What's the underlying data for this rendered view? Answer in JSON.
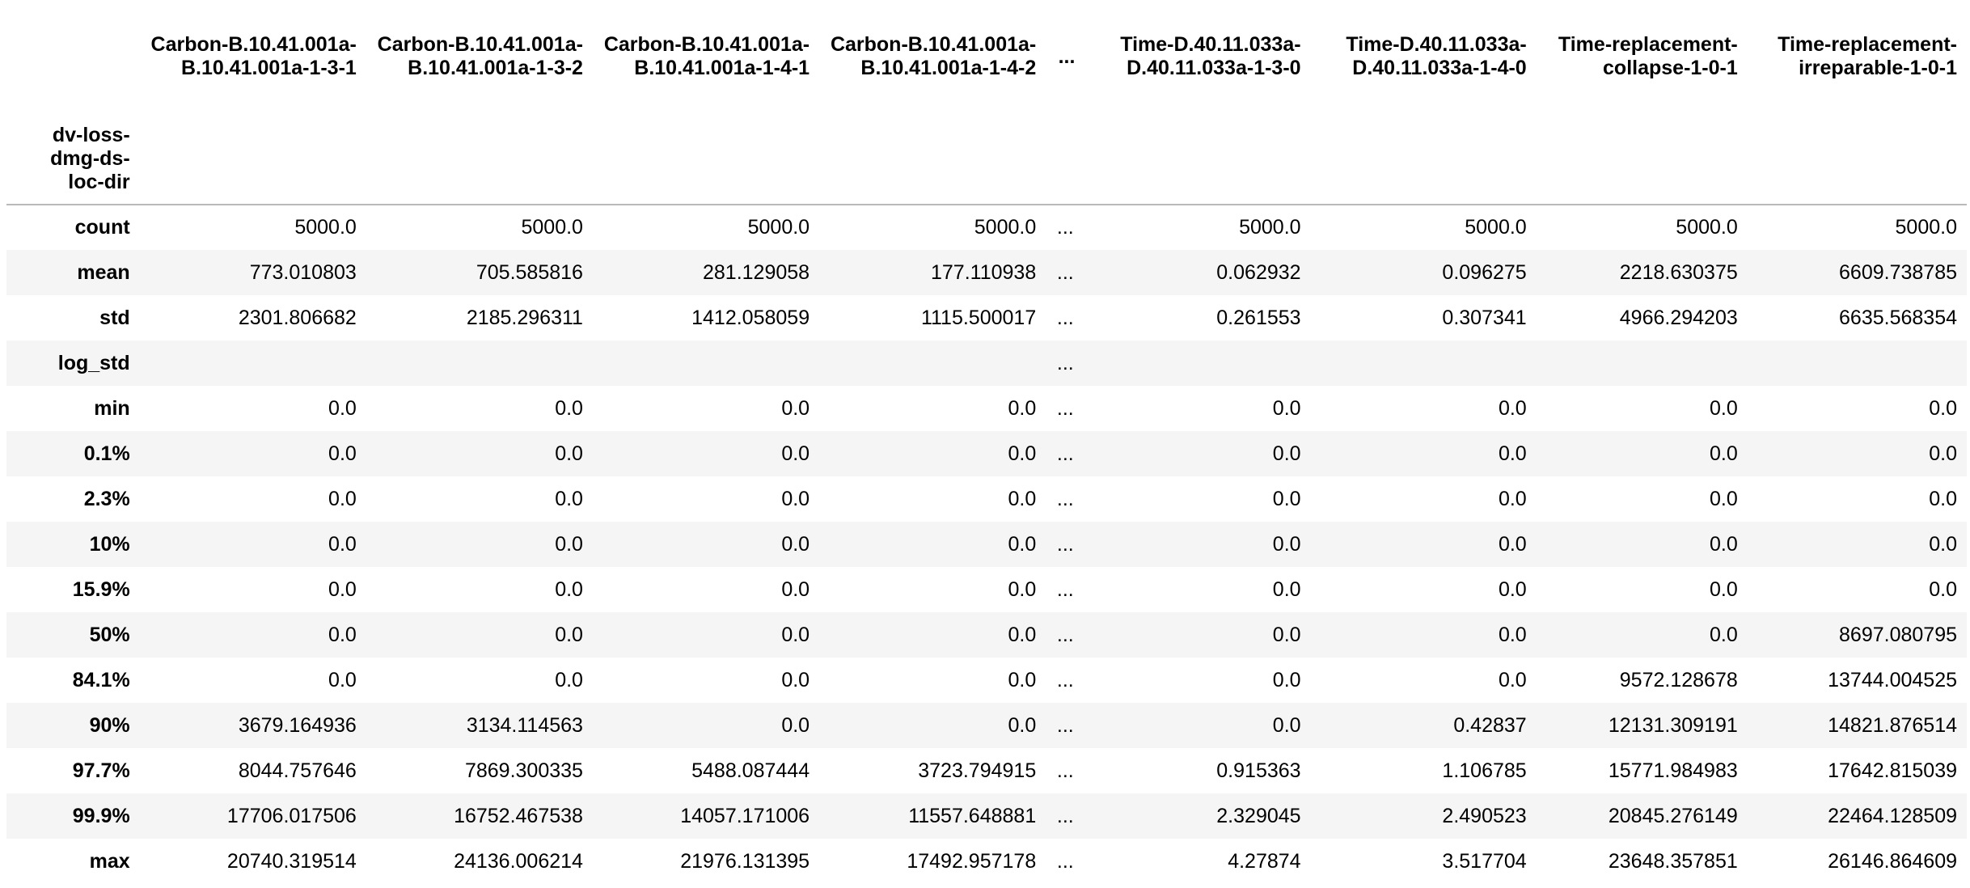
{
  "table": {
    "index_name": "dv-loss-dmg-ds-loc-dir",
    "ellipsis": "...",
    "columns": [
      "Carbon-B.10.41.001a-B.10.41.001a-1-3-1",
      "Carbon-B.10.41.001a-B.10.41.001a-1-3-2",
      "Carbon-B.10.41.001a-B.10.41.001a-1-4-1",
      "Carbon-B.10.41.001a-B.10.41.001a-1-4-2",
      "...",
      "Time-D.40.11.033a-D.40.11.033a-1-3-0",
      "Time-D.40.11.033a-D.40.11.033a-1-4-0",
      "Time-replacement-collapse-1-0-1",
      "Time-replacement-irreparable-1-0-1"
    ],
    "rows": [
      {
        "label": "count",
        "cells": [
          "5000.0",
          "5000.0",
          "5000.0",
          "5000.0",
          "...",
          "5000.0",
          "5000.0",
          "5000.0",
          "5000.0"
        ]
      },
      {
        "label": "mean",
        "cells": [
          "773.010803",
          "705.585816",
          "281.129058",
          "177.110938",
          "...",
          "0.062932",
          "0.096275",
          "2218.630375",
          "6609.738785"
        ]
      },
      {
        "label": "std",
        "cells": [
          "2301.806682",
          "2185.296311",
          "1412.058059",
          "1115.500017",
          "...",
          "0.261553",
          "0.307341",
          "4966.294203",
          "6635.568354"
        ]
      },
      {
        "label": "log_std",
        "cells": [
          "",
          "",
          "",
          "",
          "...",
          "",
          "",
          "",
          ""
        ]
      },
      {
        "label": "min",
        "cells": [
          "0.0",
          "0.0",
          "0.0",
          "0.0",
          "...",
          "0.0",
          "0.0",
          "0.0",
          "0.0"
        ]
      },
      {
        "label": "0.1%",
        "cells": [
          "0.0",
          "0.0",
          "0.0",
          "0.0",
          "...",
          "0.0",
          "0.0",
          "0.0",
          "0.0"
        ]
      },
      {
        "label": "2.3%",
        "cells": [
          "0.0",
          "0.0",
          "0.0",
          "0.0",
          "...",
          "0.0",
          "0.0",
          "0.0",
          "0.0"
        ]
      },
      {
        "label": "10%",
        "cells": [
          "0.0",
          "0.0",
          "0.0",
          "0.0",
          "...",
          "0.0",
          "0.0",
          "0.0",
          "0.0"
        ]
      },
      {
        "label": "15.9%",
        "cells": [
          "0.0",
          "0.0",
          "0.0",
          "0.0",
          "...",
          "0.0",
          "0.0",
          "0.0",
          "0.0"
        ]
      },
      {
        "label": "50%",
        "cells": [
          "0.0",
          "0.0",
          "0.0",
          "0.0",
          "...",
          "0.0",
          "0.0",
          "0.0",
          "8697.080795"
        ]
      },
      {
        "label": "84.1%",
        "cells": [
          "0.0",
          "0.0",
          "0.0",
          "0.0",
          "...",
          "0.0",
          "0.0",
          "9572.128678",
          "13744.004525"
        ]
      },
      {
        "label": "90%",
        "cells": [
          "3679.164936",
          "3134.114563",
          "0.0",
          "0.0",
          "...",
          "0.0",
          "0.42837",
          "12131.309191",
          "14821.876514"
        ]
      },
      {
        "label": "97.7%",
        "cells": [
          "8044.757646",
          "7869.300335",
          "5488.087444",
          "3723.794915",
          "...",
          "0.915363",
          "1.106785",
          "15771.984983",
          "17642.815039"
        ]
      },
      {
        "label": "99.9%",
        "cells": [
          "17706.017506",
          "16752.467538",
          "14057.171006",
          "11557.648881",
          "...",
          "2.329045",
          "2.490523",
          "20845.276149",
          "22464.128509"
        ]
      },
      {
        "label": "max",
        "cells": [
          "20740.319514",
          "24136.006214",
          "21976.131395",
          "17492.957178",
          "...",
          "4.27874",
          "3.517704",
          "23648.357851",
          "26146.864609"
        ]
      }
    ]
  }
}
